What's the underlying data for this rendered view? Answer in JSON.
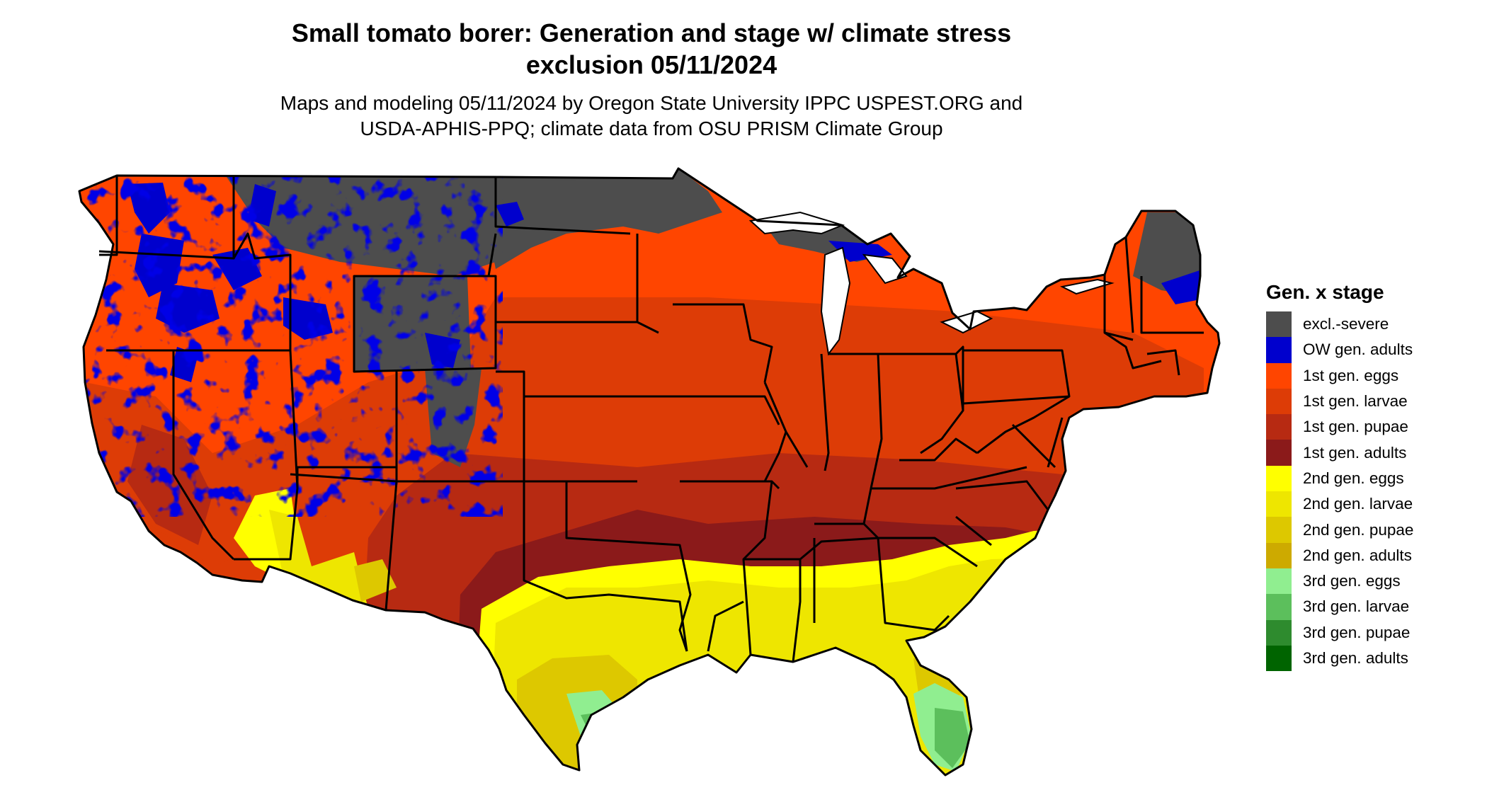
{
  "header": {
    "title_line1": "Small tomato borer: Generation and stage w/ climate stress",
    "title_line2": "exclusion 05/11/2024",
    "subtitle_line1": "Maps and modeling 05/11/2024 by Oregon State University IPPC USPEST.ORG and",
    "subtitle_line2": "USDA-APHIS-PPQ; climate data from OSU PRISM Climate Group"
  },
  "legend": {
    "title": "Gen. x stage",
    "items": [
      {
        "label": "excl.-severe",
        "color": "#4d4d4d"
      },
      {
        "label": "OW gen. adults",
        "color": "#0000cd"
      },
      {
        "label": "1st gen. eggs",
        "color": "#ff4500"
      },
      {
        "label": "1st gen. larvae",
        "color": "#dd3c06"
      },
      {
        "label": "1st gen. pupae",
        "color": "#b72a12"
      },
      {
        "label": "1st gen. adults",
        "color": "#8b1a1a"
      },
      {
        "label": "2nd gen. eggs",
        "color": "#ffff00"
      },
      {
        "label": "2nd gen. larvae",
        "color": "#eee600"
      },
      {
        "label": "2nd gen. pupae",
        "color": "#ddc800"
      },
      {
        "label": "2nd gen. adults",
        "color": "#cdaa00"
      },
      {
        "label": "3rd gen. eggs",
        "color": "#90ee90"
      },
      {
        "label": "3rd gen. larvae",
        "color": "#5cbf5c"
      },
      {
        "label": "3rd gen. pupae",
        "color": "#2e8b2e"
      },
      {
        "label": "3rd gen. adults",
        "color": "#006400"
      }
    ]
  }
}
